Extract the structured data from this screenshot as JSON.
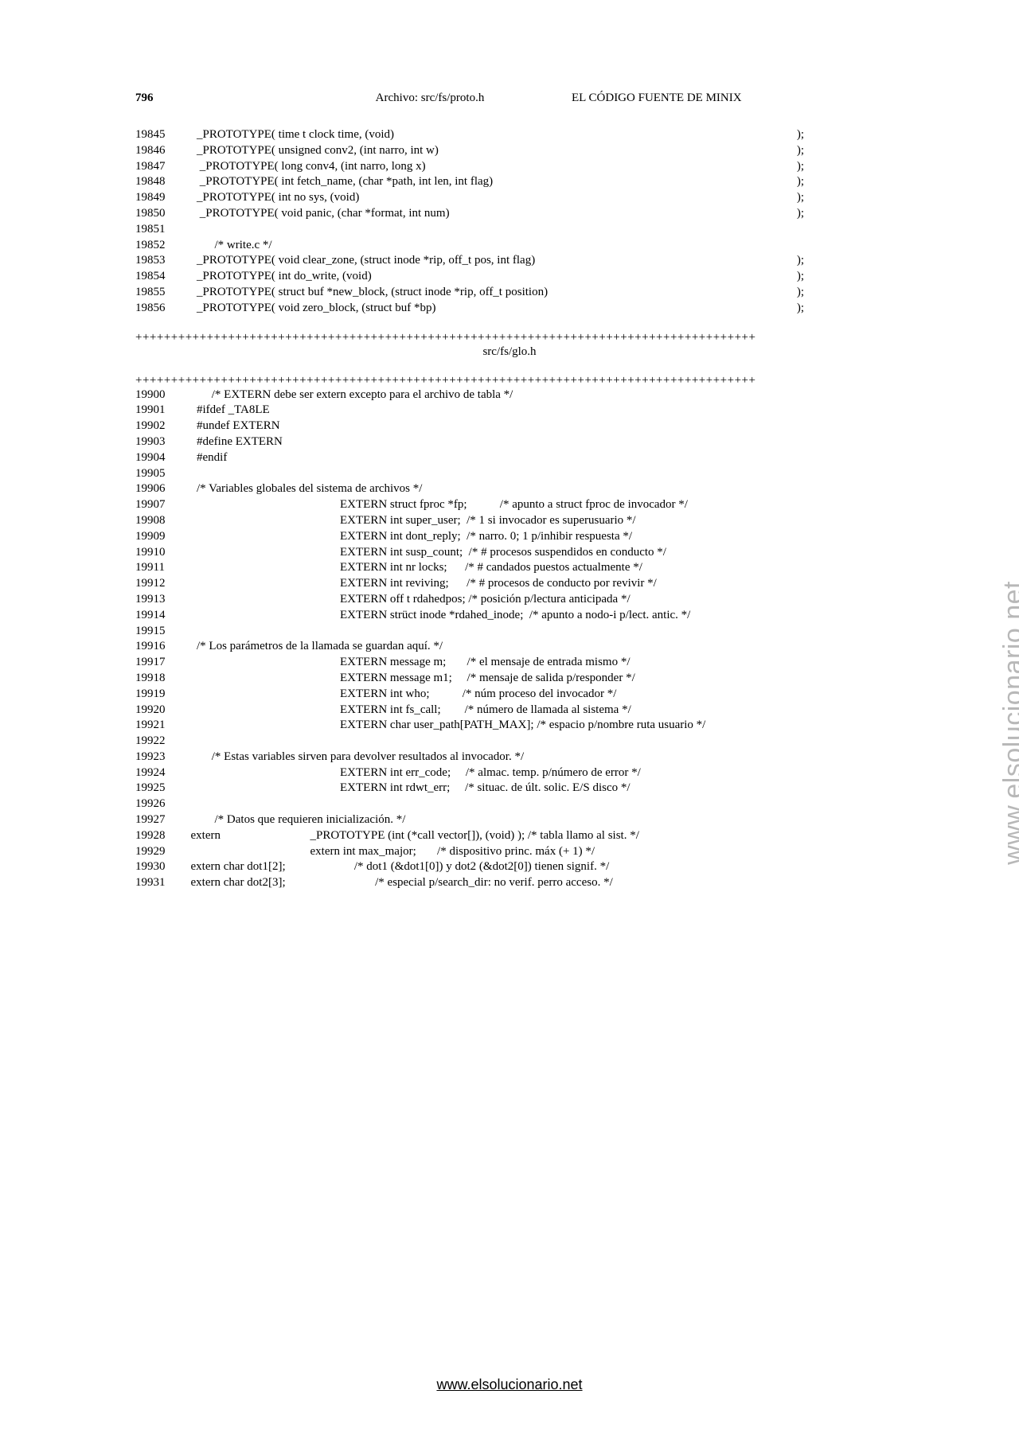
{
  "header": {
    "page_number": "796",
    "archive_label": "Archivo: src/fs/proto.h",
    "doc_title": "EL CÓDIGO FUENTE DE MINIX"
  },
  "block1": [
    {
      "num": "19845",
      "text": "    _PROTOTYPE( time t clock time, (void)",
      "term": ");"
    },
    {
      "num": "19846",
      "text": "    _PROTOTYPE( unsigned conv2, (int narro, int w)",
      "term": ");"
    },
    {
      "num": "19847",
      "text": "     _PROTOTYPE( long conv4, (int narro, long x)",
      "term": ");"
    },
    {
      "num": "19848",
      "text": "     _PROTOTYPE( int fetch_name, (char *path, int len, int flag)",
      "term": ");"
    },
    {
      "num": "19849",
      "text": "    _PROTOTYPE( int no sys, (void)",
      "term": ");"
    },
    {
      "num": "19850",
      "text": "     _PROTOTYPE( void panic, (char *format, int num)",
      "term": ");"
    },
    {
      "num": "19851",
      "text": "",
      "term": ""
    },
    {
      "num": "19852",
      "text": "          /* write.c */",
      "term": ""
    },
    {
      "num": "19853",
      "text": "    _PROTOTYPE( void clear_zone, (struct inode *rip, off_t pos, int flag)",
      "term": ");"
    },
    {
      "num": "19854",
      "text": "    _PROTOTYPE( int do_write, (void)",
      "term": ");"
    },
    {
      "num": "19855",
      "text": "    _PROTOTYPE( struct buf *new_block, (struct inode *rip, off_t position)",
      "term": ");"
    },
    {
      "num": "19856",
      "text": "    _PROTOTYPE( void zero_block, (struct buf *bp)",
      "term": ");"
    }
  ],
  "separator_line": "+++++++++++++++++++++++++++++++++++++++++++++++++++++++++++++++++++++++++++++++++++++++",
  "file_label": "src/fs/glo.h",
  "block2": [
    {
      "num": "19900",
      "text": "         /* EXTERN debe ser extern excepto para el archivo de tabla */"
    },
    {
      "num": "19901",
      "text": "    #ifdef _TA8LE"
    },
    {
      "num": "19902",
      "text": "    #undef EXTERN"
    },
    {
      "num": "19903",
      "text": "    #define EXTERN"
    },
    {
      "num": "19904",
      "text": "    #endif"
    },
    {
      "num": "19905",
      "text": ""
    },
    {
      "num": "19906",
      "text": "    /* Variables globales del sistema de archivos */"
    },
    {
      "num": "19907",
      "text": "                                                    EXTERN struct fproc *fp;           /* apunto a struct fproc de invocador */"
    },
    {
      "num": "19908",
      "text": "                                                    EXTERN int super_user;  /* 1 si invocador es superusuario */"
    },
    {
      "num": "19909",
      "text": "                                                    EXTERN int dont_reply;  /* narro. 0; 1 p/inhibir respuesta */"
    },
    {
      "num": "19910",
      "text": "                                                    EXTERN int susp_count;  /* # procesos suspendidos en conducto */"
    },
    {
      "num": "19911",
      "text": "                                                    EXTERN int nr locks;      /* # candados puestos actualmente */"
    },
    {
      "num": "19912",
      "text": "                                                    EXTERN int reviving;      /* # procesos de conducto por revivir */"
    },
    {
      "num": "19913",
      "text": "                                                    EXTERN off t rdahedpos; /* posición p/lectura anticipada */"
    },
    {
      "num": "19914",
      "text": "                                                    EXTERN strüct inode *rdahed_inode;  /* apunto a nodo-i p/lect. antic. */"
    },
    {
      "num": "19915",
      "text": ""
    },
    {
      "num": "19916",
      "text": "    /* Los parámetros de la llamada se guardan aquí. */"
    },
    {
      "num": "19917",
      "text": "                                                    EXTERN message m;       /* el mensaje de entrada mismo */"
    },
    {
      "num": "19918",
      "text": "                                                    EXTERN message m1;     /* mensaje de salida p/responder */"
    },
    {
      "num": "19919",
      "text": "                                                    EXTERN int who;           /* núm proceso del invocador */"
    },
    {
      "num": "19920",
      "text": "                                                    EXTERN int fs_call;        /* número de llamada al sistema */"
    },
    {
      "num": "19921",
      "text": "                                                    EXTERN char user_path[PATH_MAX]; /* espacio p/nombre ruta usuario */"
    },
    {
      "num": "19922",
      "text": ""
    },
    {
      "num": "19923",
      "text": "         /* Estas variables sirven para devolver resultados al invocador. */"
    },
    {
      "num": "19924",
      "text": "                                                    EXTERN int err_code;     /* almac. temp. p/número de error */"
    },
    {
      "num": "19925",
      "text": "                                                    EXTERN int rdwt_err;     /* situac. de últ. solic. E/S disco */"
    },
    {
      "num": "19926",
      "text": ""
    },
    {
      "num": "19927",
      "text": "          /* Datos que requieren inicialización. */"
    },
    {
      "num": "19928",
      "text": "  extern                              _PROTOTYPE (int (*call vector[]), (void) ); /* tabla llamo al sist. */"
    },
    {
      "num": "19929",
      "text": "                                          extern int max_major;       /* dispositivo princ. máx (+ 1) */"
    },
    {
      "num": "19930",
      "text": "  extern char dot1[2];                       /* dot1 (&dot1[0]) y dot2 (&dot2[0]) tienen signif. */"
    },
    {
      "num": "19931",
      "text": "  extern char dot2[3];                              /* especial p/search_dir: no verif. perro acceso. */"
    }
  ],
  "watermark": "www.elsolucionario.net",
  "footer_url": "www.elsolucionario.net"
}
